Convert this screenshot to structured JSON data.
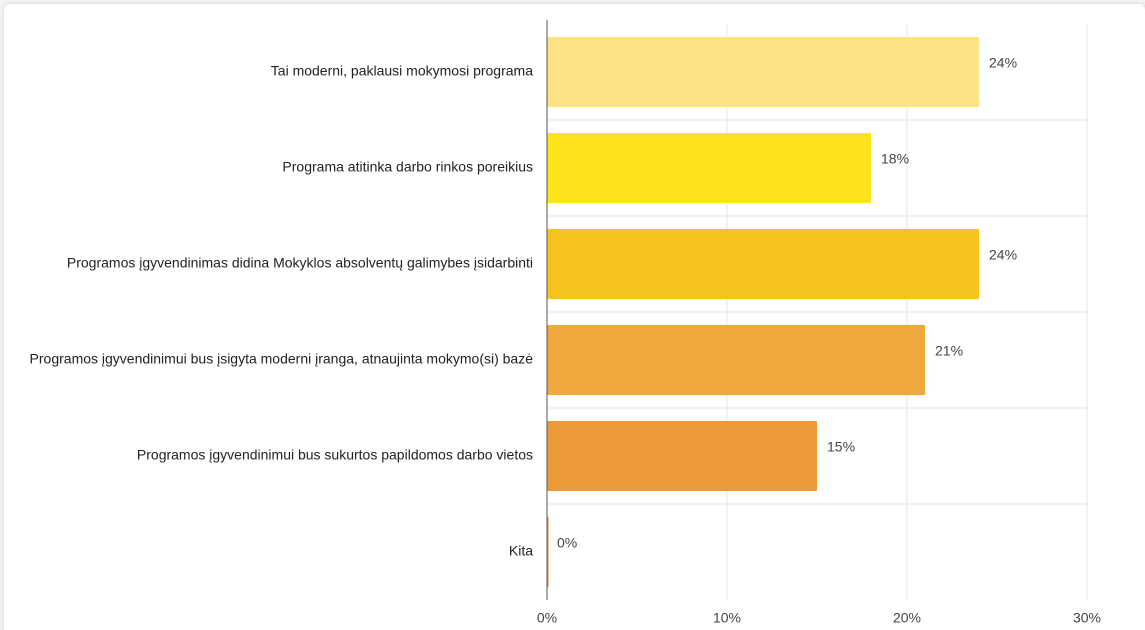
{
  "chart_data": {
    "type": "bar",
    "orientation": "horizontal",
    "categories": [
      "Tai moderni, paklausi mokymosi programa",
      "Programa atitinka darbo rinkos poreikius",
      "Programos įgyvendinimas didina Mokyklos absolventų galimybes įsidarbinti",
      "Programos įgyvendinimui bus įsigyta moderni įranga, atnaujinta mokymo(si) bazė",
      "Programos įgyvendinimui bus sukurtos papildomos darbo vietos",
      "Kita"
    ],
    "values": [
      24,
      18,
      24,
      21,
      15,
      0
    ],
    "value_labels": [
      "24%",
      "18%",
      "24%",
      "21%",
      "15%",
      "0%"
    ],
    "colors": [
      "#fde383",
      "#fde31b",
      "#f6c21c",
      "#efa83c",
      "#ec9a3c",
      "#e98b2e"
    ],
    "xlim": [
      0,
      30
    ],
    "xticks": [
      {
        "value": 0,
        "label": "0%"
      },
      {
        "value": 10,
        "label": "10%"
      },
      {
        "value": 20,
        "label": "20%"
      },
      {
        "value": 30,
        "label": "30%"
      }
    ],
    "grid": true
  }
}
